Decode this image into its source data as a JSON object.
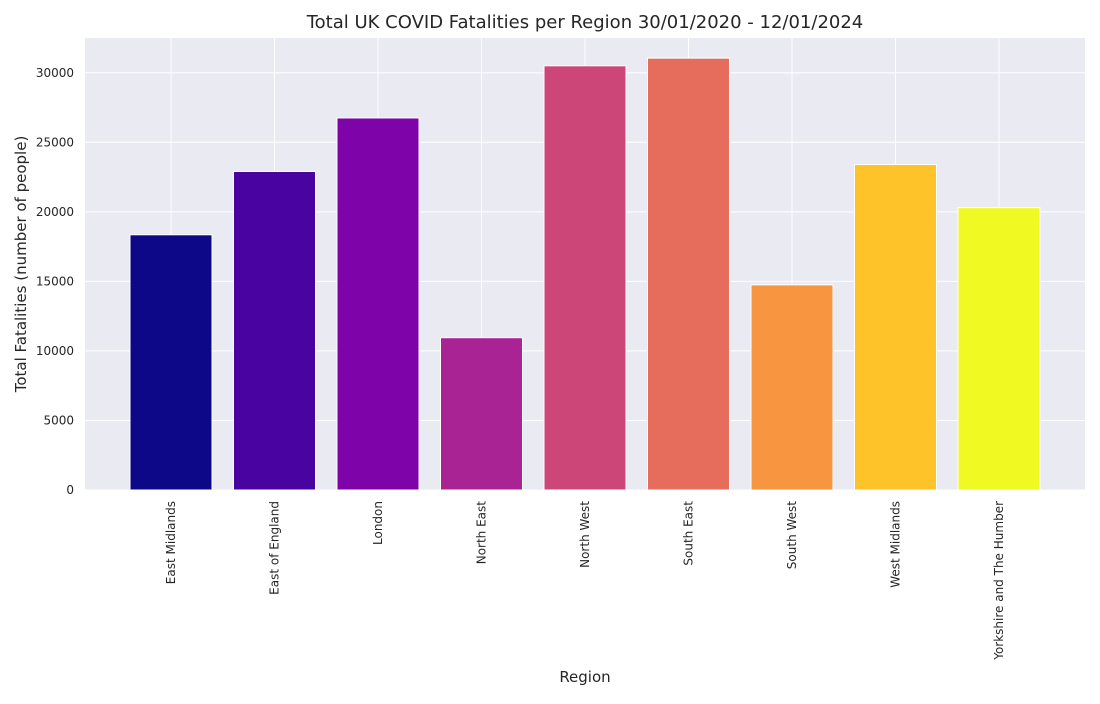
{
  "chart_data": {
    "type": "bar",
    "title": "Total UK COVID Fatalities per Region 30/01/2020 - 12/01/2024",
    "xlabel": "Region",
    "ylabel": "Total Fatalities (number of people)",
    "ylim": [
      0,
      32500
    ],
    "y_ticks": [
      0,
      5000,
      10000,
      15000,
      20000,
      25000,
      30000
    ],
    "grid": true,
    "categories": [
      "East Midlands",
      "East of England",
      "London",
      "North East",
      "North West",
      "South East",
      "South West",
      "West Midlands",
      "Yorkshire and The Humber"
    ],
    "values": [
      18350,
      22900,
      26750,
      10950,
      30500,
      31050,
      14750,
      23400,
      20300
    ],
    "colors": [
      "#0d0887",
      "#4903a0",
      "#7e03a8",
      "#aa2395",
      "#cc4778",
      "#e66c5c",
      "#f89540",
      "#fdc328",
      "#f0f921"
    ],
    "background": "#eaeaf2"
  }
}
